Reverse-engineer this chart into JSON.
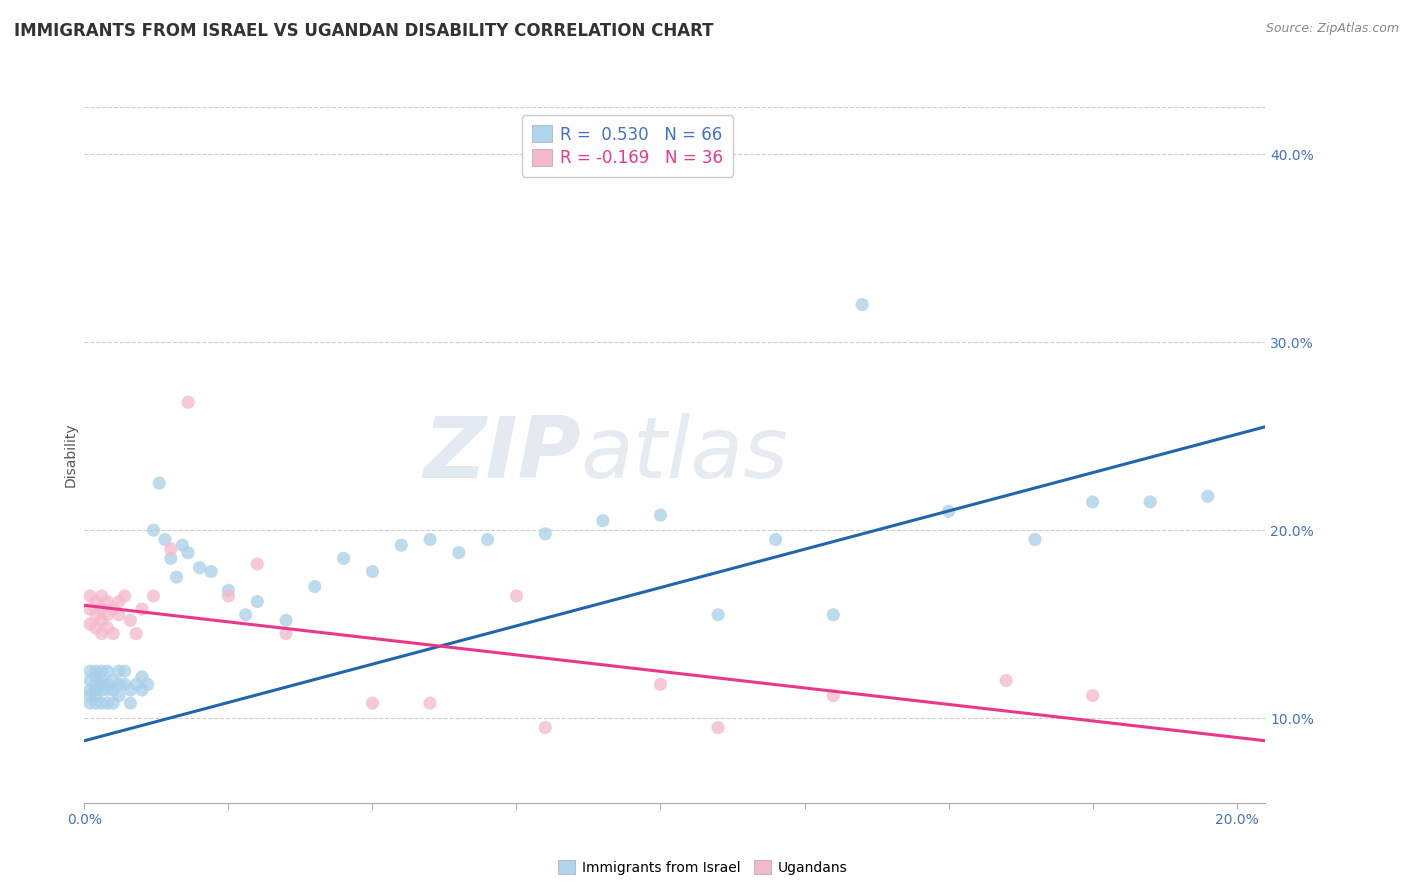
{
  "title": "IMMIGRANTS FROM ISRAEL VS UGANDAN DISABILITY CORRELATION CHART",
  "source": "Source: ZipAtlas.com",
  "ylabel": "Disability",
  "xlim": [
    0.0,
    0.205
  ],
  "ylim": [
    0.055,
    0.425
  ],
  "yticks": [
    0.1,
    0.2,
    0.3,
    0.4
  ],
  "ytick_labels": [
    "10.0%",
    "20.0%",
    "30.0%",
    "40.0%"
  ],
  "xtick_positions": [
    0.0,
    0.025,
    0.05,
    0.075,
    0.1,
    0.125,
    0.15,
    0.175,
    0.2
  ],
  "series_blue": {
    "name": "Immigrants from Israel",
    "R": "0.530",
    "N": "66",
    "color": "#a8cfe8",
    "trend_color": "#2166ac",
    "x": [
      0.001,
      0.001,
      0.001,
      0.001,
      0.001,
      0.002,
      0.002,
      0.002,
      0.002,
      0.002,
      0.002,
      0.003,
      0.003,
      0.003,
      0.003,
      0.003,
      0.004,
      0.004,
      0.004,
      0.004,
      0.005,
      0.005,
      0.005,
      0.006,
      0.006,
      0.006,
      0.007,
      0.007,
      0.008,
      0.008,
      0.009,
      0.01,
      0.01,
      0.011,
      0.012,
      0.013,
      0.014,
      0.015,
      0.016,
      0.017,
      0.018,
      0.02,
      0.022,
      0.025,
      0.028,
      0.03,
      0.035,
      0.04,
      0.045,
      0.05,
      0.055,
      0.06,
      0.065,
      0.07,
      0.08,
      0.09,
      0.1,
      0.11,
      0.12,
      0.13,
      0.135,
      0.15,
      0.165,
      0.175,
      0.185,
      0.195
    ],
    "y": [
      0.115,
      0.125,
      0.108,
      0.12,
      0.112,
      0.115,
      0.122,
      0.108,
      0.118,
      0.125,
      0.112,
      0.118,
      0.125,
      0.108,
      0.115,
      0.12,
      0.115,
      0.118,
      0.125,
      0.108,
      0.115,
      0.12,
      0.108,
      0.118,
      0.125,
      0.112,
      0.118,
      0.125,
      0.115,
      0.108,
      0.118,
      0.115,
      0.122,
      0.118,
      0.2,
      0.225,
      0.195,
      0.185,
      0.175,
      0.192,
      0.188,
      0.18,
      0.178,
      0.168,
      0.155,
      0.162,
      0.152,
      0.17,
      0.185,
      0.178,
      0.192,
      0.195,
      0.188,
      0.195,
      0.198,
      0.205,
      0.208,
      0.155,
      0.195,
      0.155,
      0.32,
      0.21,
      0.195,
      0.215,
      0.215,
      0.218
    ],
    "trend_x": [
      0.0,
      0.205
    ],
    "trend_y": [
      0.088,
      0.255
    ]
  },
  "series_pink": {
    "name": "Ugandans",
    "R": "-0.169",
    "N": "36",
    "color": "#f4b8cb",
    "trend_color": "#e8388a",
    "x": [
      0.001,
      0.001,
      0.001,
      0.002,
      0.002,
      0.002,
      0.003,
      0.003,
      0.003,
      0.003,
      0.004,
      0.004,
      0.004,
      0.005,
      0.005,
      0.006,
      0.006,
      0.007,
      0.008,
      0.009,
      0.01,
      0.012,
      0.015,
      0.018,
      0.025,
      0.03,
      0.035,
      0.05,
      0.06,
      0.075,
      0.08,
      0.1,
      0.11,
      0.13,
      0.16,
      0.175
    ],
    "y": [
      0.15,
      0.158,
      0.165,
      0.155,
      0.162,
      0.148,
      0.152,
      0.158,
      0.165,
      0.145,
      0.155,
      0.162,
      0.148,
      0.158,
      0.145,
      0.162,
      0.155,
      0.165,
      0.152,
      0.145,
      0.158,
      0.165,
      0.19,
      0.268,
      0.165,
      0.182,
      0.145,
      0.108,
      0.108,
      0.165,
      0.095,
      0.118,
      0.095,
      0.112,
      0.12,
      0.112
    ],
    "trend_x": [
      0.0,
      0.205
    ],
    "trend_y": [
      0.16,
      0.088
    ]
  },
  "legend": {
    "R1": "0.530",
    "N1": "66",
    "R2": "-0.169",
    "N2": "36"
  },
  "background_color": "#ffffff",
  "grid_color": "#cccccc",
  "title_fontsize": 12,
  "axis_label_fontsize": 10,
  "tick_fontsize": 10
}
